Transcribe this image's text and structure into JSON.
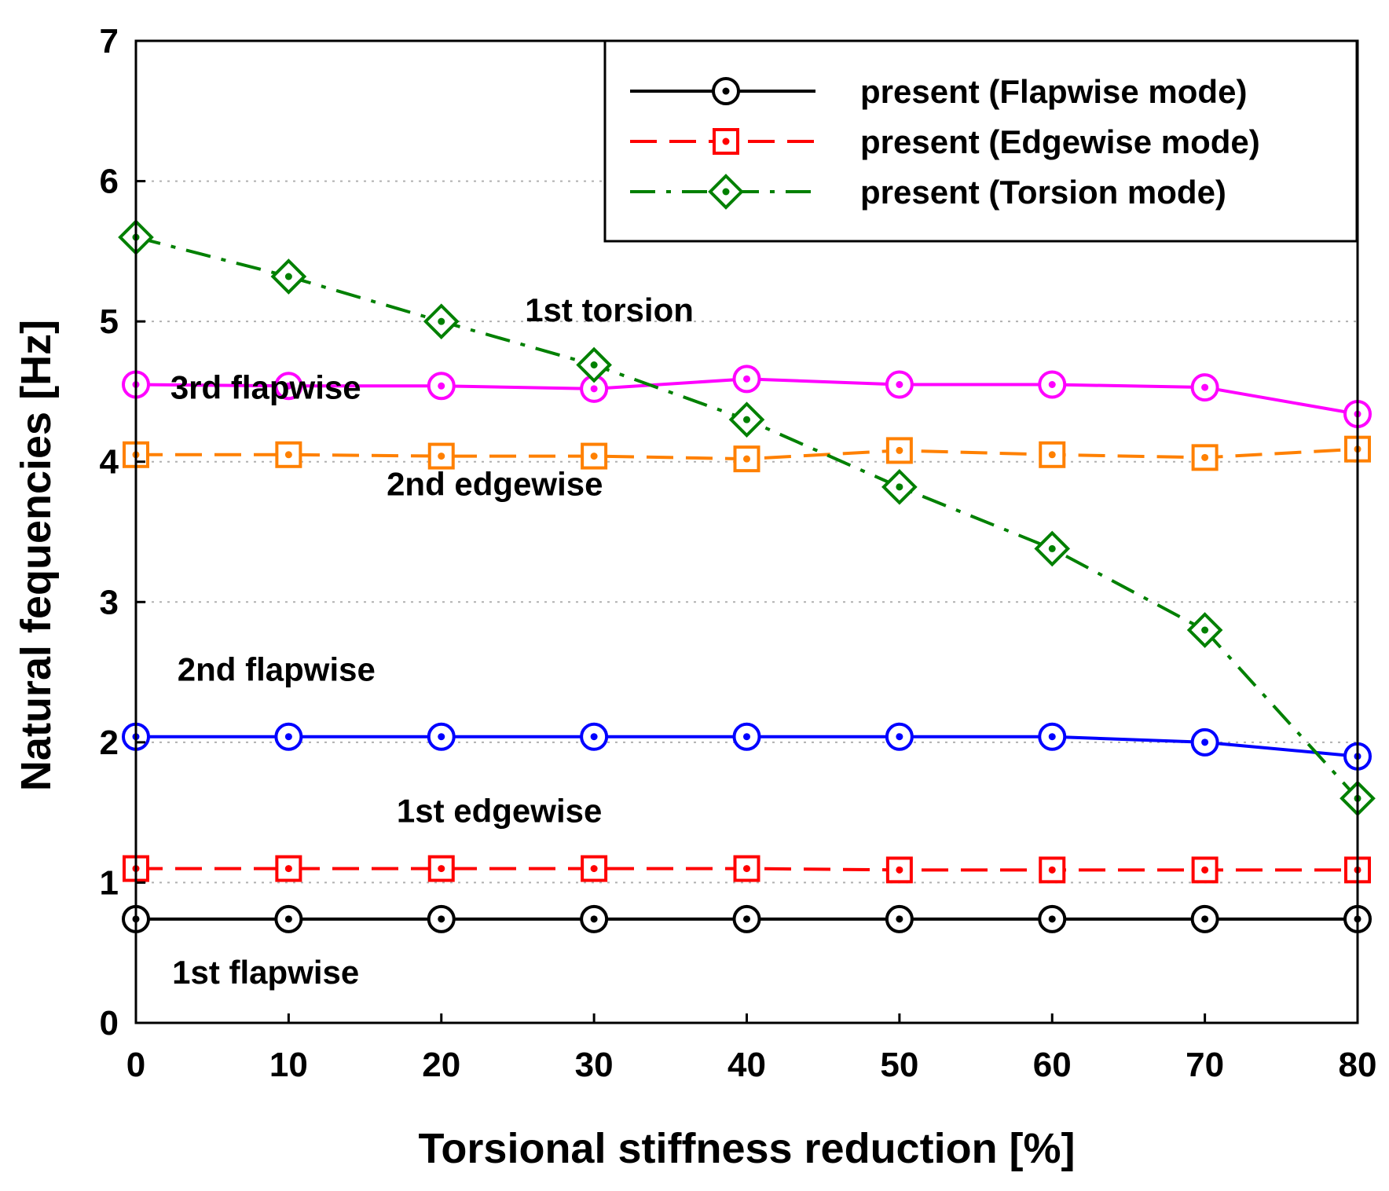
{
  "chart_data": {
    "type": "line",
    "xlabel": "Torsional stiffness reduction [%]",
    "ylabel": "Natural fequencies [Hz]",
    "xlim": [
      0,
      80
    ],
    "ylim": [
      0,
      7
    ],
    "xticks": [
      "0",
      "10",
      "20",
      "30",
      "40",
      "50",
      "60",
      "70",
      "80"
    ],
    "yticks": [
      "0",
      "1",
      "2",
      "3",
      "4",
      "5",
      "6",
      "7"
    ],
    "grid": "horizontal dotted",
    "legend_position": "top-right",
    "legend": [
      {
        "label": "present (Flapwise mode)",
        "color": "#000000",
        "marker": "circle",
        "dash": "solid"
      },
      {
        "label": "present (Edgewise mode)",
        "color": "#ff0000",
        "marker": "square",
        "dash": "dashed"
      },
      {
        "label": "present (Torsion mode)",
        "color": "#008000",
        "marker": "diamond",
        "dash": "dashdot"
      }
    ],
    "x": [
      0,
      10,
      20,
      30,
      40,
      50,
      60,
      70,
      80
    ],
    "series": [
      {
        "mode": "1st flapwise",
        "color": "#000000",
        "marker": "circle",
        "dash": "solid",
        "values": [
          0.74,
          0.74,
          0.74,
          0.74,
          0.74,
          0.74,
          0.74,
          0.74,
          0.74
        ]
      },
      {
        "mode": "1st edgewise",
        "color": "#ff0000",
        "marker": "square",
        "dash": "dashed",
        "values": [
          1.1,
          1.1,
          1.1,
          1.1,
          1.1,
          1.09,
          1.09,
          1.09,
          1.09
        ]
      },
      {
        "mode": "2nd flapwise",
        "color": "#0000ff",
        "marker": "circle",
        "dash": "solid",
        "values": [
          2.04,
          2.04,
          2.04,
          2.04,
          2.04,
          2.04,
          2.04,
          2.0,
          1.9
        ]
      },
      {
        "mode": "2nd edgewise",
        "color": "#ff8000",
        "marker": "square",
        "dash": "dashed",
        "values": [
          4.05,
          4.05,
          4.04,
          4.04,
          4.02,
          4.08,
          4.05,
          4.03,
          4.09
        ]
      },
      {
        "mode": "3rd flapwise",
        "color": "#ff00ff",
        "marker": "circle",
        "dash": "solid",
        "values": [
          4.55,
          4.54,
          4.54,
          4.52,
          4.59,
          4.55,
          4.55,
          4.53,
          4.34
        ]
      },
      {
        "mode": "1st torsion",
        "color": "#008000",
        "marker": "diamond",
        "dash": "dashdot",
        "values": [
          5.6,
          5.32,
          5.0,
          4.69,
          4.3,
          3.82,
          3.38,
          2.8,
          1.6
        ]
      }
    ],
    "annotations": [
      {
        "text": "1st torsion",
        "x": 31,
        "y": 5.0
      },
      {
        "text": "3rd flapwise",
        "x": 8.5,
        "y": 4.45
      },
      {
        "text": "2nd edgewise",
        "x": 23.5,
        "y": 3.76
      },
      {
        "text": "2nd flapwise",
        "x": 9.2,
        "y": 2.44
      },
      {
        "text": "1st edgewise",
        "x": 23.8,
        "y": 1.43
      },
      {
        "text": "1st flapwise",
        "x": 8.5,
        "y": 0.28
      }
    ]
  }
}
